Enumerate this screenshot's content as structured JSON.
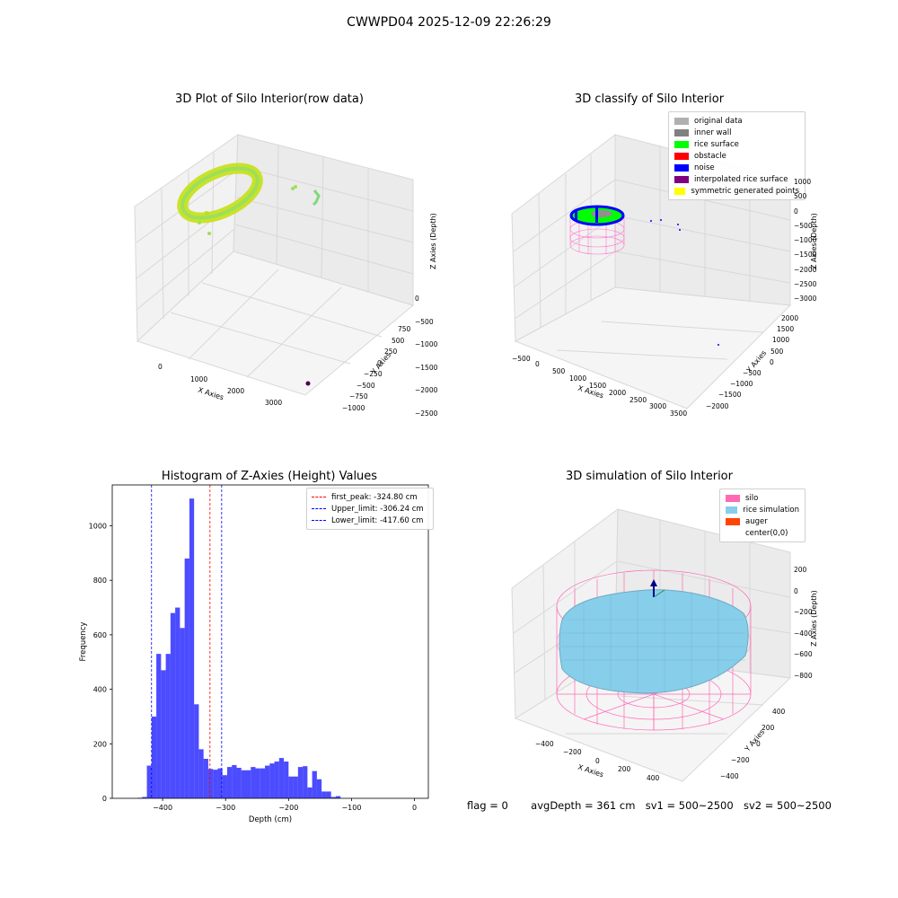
{
  "suptitle": "CWWPD04 2025-12-09 22:26:29",
  "panel1": {
    "title": "3D Plot of Silo Interior(row data)",
    "xlabel": "X Axies",
    "ylabel": "Y Axies",
    "zlabel": "Z Axies (Depth)",
    "xticks": [
      "0",
      "1000",
      "2000",
      "3000"
    ],
    "yticks": [
      "750",
      "500",
      "250",
      "0",
      "−250",
      "−500",
      "−750",
      "−1000"
    ],
    "zticks": [
      "0",
      "−500",
      "−1000",
      "−1500",
      "−2000",
      "−2500"
    ]
  },
  "panel2": {
    "title": "3D classify of Silo Interior",
    "xlabel": "X Axies",
    "ylabel": "Y Axies",
    "zlabel": "Z Axies (Depth)",
    "xticks": [
      "−500",
      "0",
      "500",
      "1000",
      "1500",
      "2000",
      "2500",
      "3000",
      "3500"
    ],
    "yticks": [
      "2000",
      "1500",
      "1000",
      "500",
      "0",
      "−500",
      "−1000",
      "−1500",
      "−2000"
    ],
    "zticks": [
      "1000",
      "500",
      "0",
      "−500",
      "−1000",
      "−1500",
      "−2000",
      "−2500",
      "−3000"
    ],
    "legend": [
      {
        "label": "original data",
        "color": "#b0b0b0"
      },
      {
        "label": "inner wall",
        "color": "#808080"
      },
      {
        "label": "rice surface",
        "color": "#00ff00"
      },
      {
        "label": "obstacle",
        "color": "#ff0000"
      },
      {
        "label": "noise",
        "color": "#0000ff"
      },
      {
        "label": "interpolated rice surface",
        "color": "#800080"
      },
      {
        "label": "symmetric generated points",
        "color": "#ffff00"
      }
    ]
  },
  "panel4": {
    "title": "3D simulation of Silo Interior",
    "xlabel": "X Axies",
    "ylabel": "Y Axies",
    "zlabel": "Z Axies (Depth)",
    "xticks": [
      "−400",
      "−200",
      "0",
      "200",
      "400"
    ],
    "yticks": [
      "400",
      "200",
      "0",
      "−200",
      "−400"
    ],
    "zticks": [
      "200",
      "0",
      "−200",
      "−400",
      "−600",
      "−800"
    ],
    "legend": [
      {
        "label": "silo",
        "color": "#ff69b4"
      },
      {
        "label": "rice simulation",
        "color": "#87ceeb"
      },
      {
        "label": "auger",
        "color": "#ff4500"
      },
      {
        "label": "center(0,0)",
        "color": "#ffffff"
      }
    ]
  },
  "footer": {
    "flag": "flag = 0",
    "avg": "avgDepth = 361 cm",
    "sv1": "sv1 = 500~2500",
    "sv2": "sv2 = 500~2500"
  },
  "chart_data": {
    "type": "bar",
    "title": "Histogram of Z-Axies (Height) Values",
    "xlabel": "Depth (cm)",
    "ylabel": "Frequency",
    "xlim": [
      -480,
      22
    ],
    "ylim": [
      0,
      1150
    ],
    "xticks": [
      -400,
      -300,
      -200,
      -100,
      0
    ],
    "yticks": [
      0,
      200,
      400,
      600,
      800,
      1000
    ],
    "bin_edges_start": -440,
    "bin_width": 7.5,
    "values": [
      2,
      5,
      120,
      300,
      530,
      470,
      530,
      680,
      700,
      625,
      880,
      1100,
      345,
      180,
      145,
      108,
      105,
      110,
      85,
      115,
      122,
      112,
      103,
      103,
      115,
      110,
      110,
      120,
      128,
      135,
      148,
      135,
      80,
      80,
      115,
      118,
      40,
      100,
      70,
      25,
      25,
      5,
      8
    ],
    "bar_color": "#0000ff",
    "vlines": [
      {
        "label": "first_peak: -324.80 cm",
        "x": -324.8,
        "color": "#ff0000"
      },
      {
        "label": "Upper_limit: -306.24 cm",
        "x": -306.24,
        "color": "#0000ff"
      },
      {
        "label": "Lower_limit: -417.60 cm",
        "x": -417.6,
        "color": "#0000ff"
      }
    ],
    "legend_position": "upper right"
  }
}
